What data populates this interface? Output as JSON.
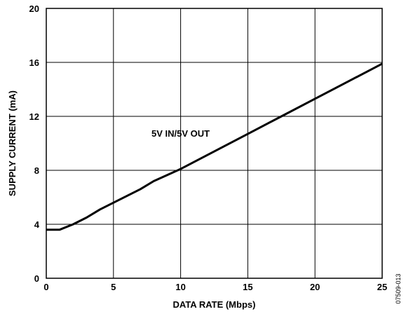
{
  "chart_data": {
    "type": "line",
    "title": "",
    "xlabel": "DATA RATE (Mbps)",
    "ylabel": "SUPPLY CURRENT (mA)",
    "xlim": [
      0,
      25
    ],
    "ylim": [
      0,
      20
    ],
    "x_ticks": [
      0,
      5,
      10,
      15,
      20,
      25
    ],
    "y_ticks": [
      0,
      4,
      8,
      12,
      16,
      20
    ],
    "x_tick_labels": [
      "0",
      "5",
      "10",
      "15",
      "20",
      "25"
    ],
    "y_tick_labels": [
      "0",
      "4",
      "8",
      "12",
      "16",
      "20"
    ],
    "grid": true,
    "series": [
      {
        "name": "5V IN/5V OUT",
        "x": [
          0,
          1,
          2,
          3,
          4,
          5,
          6,
          7,
          8,
          9,
          10,
          12.5,
          15,
          17.5,
          20,
          22.5,
          25
        ],
        "y": [
          3.6,
          3.6,
          4.0,
          4.5,
          5.1,
          5.6,
          6.1,
          6.6,
          7.2,
          7.65,
          8.1,
          9.4,
          10.7,
          12.0,
          13.3,
          14.6,
          15.9
        ]
      }
    ],
    "annotations": [
      {
        "text": "5V IN/5V OUT",
        "x": 10,
        "y": 10.5
      }
    ],
    "figure_id": "07509-013",
    "colors": {
      "line": "#000000",
      "grid": "#000000",
      "background": "#ffffff"
    }
  }
}
